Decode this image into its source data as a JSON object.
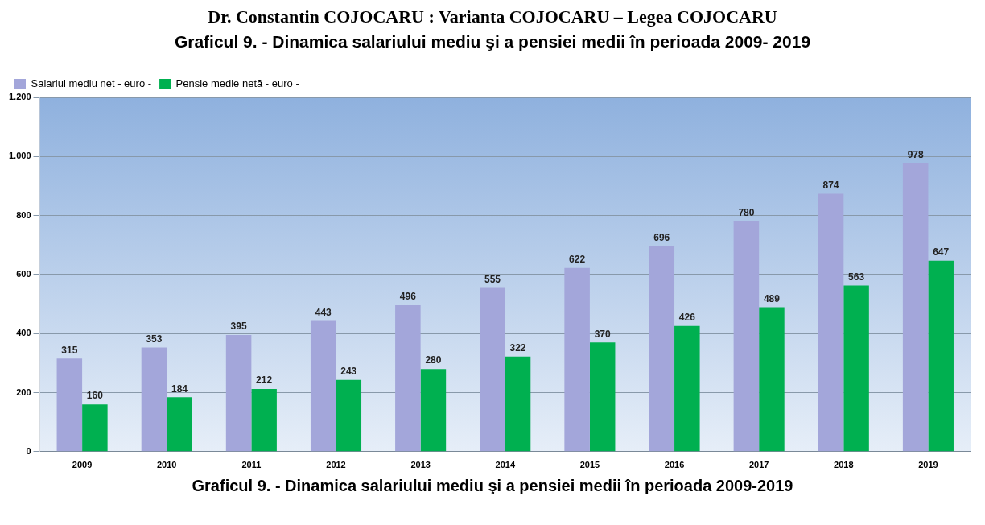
{
  "chart_data": {
    "type": "bar",
    "title": "Dr. Constantin COJOCARU : Varianta COJOCARU – Legea COJOCARU",
    "subtitle": "Graficul 9.  - Dinamica salariului mediu şi a pensiei medii în perioada 2009- 2019",
    "annotations": [
      "Graficul 9.  - Dinamica salariului mediu şi a pensiei medii în perioada 2009-2019"
    ],
    "categories": [
      "2009",
      "2010",
      "2011",
      "2012",
      "2013",
      "2014",
      "2015",
      "2016",
      "2017",
      "2018",
      "2019"
    ],
    "series": [
      {
        "name": "Salariul mediu net - euro -",
        "color": "#a3a6da",
        "values": [
          315,
          353,
          395,
          443,
          496,
          555,
          622,
          696,
          780,
          874,
          978
        ]
      },
      {
        "name": "Pensie medie netă - euro -",
        "color": "#00b050",
        "values": [
          160,
          184,
          212,
          243,
          280,
          322,
          370,
          426,
          489,
          563,
          647
        ]
      }
    ],
    "ylim": [
      0,
      1200
    ],
    "yticks": [
      0,
      200,
      400,
      600,
      800,
      {
        "value": 1000,
        "label": "1.000"
      },
      {
        "value": 1200,
        "label": "1.200"
      }
    ],
    "grid": "y",
    "legend": "top left",
    "data_labels": true
  }
}
